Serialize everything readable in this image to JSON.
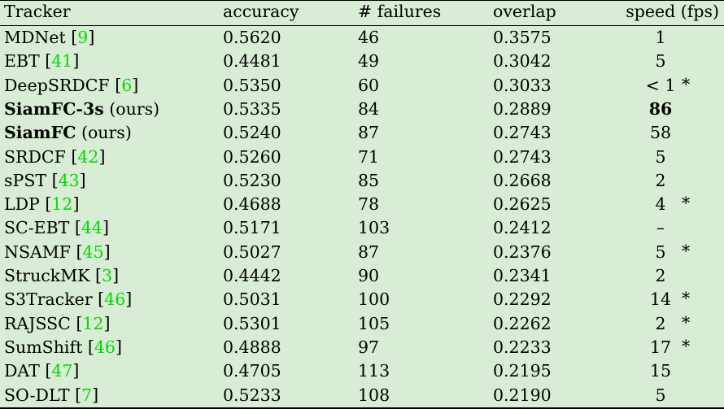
{
  "table": {
    "headers": [
      "Tracker",
      "accuracy",
      "# failures",
      "overlap",
      "speed (fps)"
    ],
    "rows": [
      {
        "name": "MDNet",
        "ref": "9",
        "accuracy": "0.5620",
        "failures": "46",
        "overlap": "0.3575",
        "speed": "1",
        "star": ""
      },
      {
        "name": "EBT",
        "ref": "41",
        "accuracy": "0.4481",
        "failures": "49",
        "overlap": "0.3042",
        "speed": "5",
        "star": ""
      },
      {
        "name": "DeepSRDCF",
        "ref": "6",
        "accuracy": "0.5350",
        "failures": "60",
        "overlap": "0.3033",
        "speed": "< 1",
        "star": "*"
      },
      {
        "name": "SiamFC-3s",
        "suffix": "(ours)",
        "accuracy": "0.5335",
        "failures": "84",
        "overlap": "0.2889",
        "speed": "86",
        "star": ""
      },
      {
        "name": "SiamFC",
        "suffix": "(ours)",
        "accuracy": "0.5240",
        "failures": "87",
        "overlap": "0.2743",
        "speed": "58",
        "star": ""
      },
      {
        "name": "SRDCF",
        "ref": "42",
        "accuracy": "0.5260",
        "failures": "71",
        "overlap": "0.2743",
        "speed": "5",
        "star": ""
      },
      {
        "name": "sPST",
        "ref": "43",
        "accuracy": "0.5230",
        "failures": "85",
        "overlap": "0.2668",
        "speed": "2",
        "star": ""
      },
      {
        "name": "LDP",
        "ref": "12",
        "accuracy": "0.4688",
        "failures": "78",
        "overlap": "0.2625",
        "speed": "4",
        "star": "*"
      },
      {
        "name": "SC-EBT",
        "ref": "44",
        "accuracy": "0.5171",
        "failures": "103",
        "overlap": "0.2412",
        "speed": "–",
        "star": ""
      },
      {
        "name": "NSAMF",
        "ref": "45",
        "accuracy": "0.5027",
        "failures": "87",
        "overlap": "0.2376",
        "speed": "5",
        "star": "*"
      },
      {
        "name": "StruckMK",
        "ref": "3",
        "accuracy": "0.4442",
        "failures": "90",
        "overlap": "0.2341",
        "speed": "2",
        "star": ""
      },
      {
        "name": "S3Tracker",
        "ref": "46",
        "accuracy": "0.5031",
        "failures": "100",
        "overlap": "0.2292",
        "speed": "14",
        "star": "*"
      },
      {
        "name": "RAJSSC",
        "ref": "12",
        "accuracy": "0.5301",
        "failures": "105",
        "overlap": "0.2262",
        "speed": "2",
        "star": "*"
      },
      {
        "name": "SumShift",
        "ref": "46",
        "accuracy": "0.4888",
        "failures": "97",
        "overlap": "0.2233",
        "speed": "17",
        "star": "*"
      },
      {
        "name": "DAT",
        "ref": "47",
        "accuracy": "0.4705",
        "failures": "113",
        "overlap": "0.2195",
        "speed": "15",
        "star": ""
      },
      {
        "name": "SO-DLT",
        "ref": "7",
        "accuracy": "0.5233",
        "failures": "108",
        "overlap": "0.2190",
        "speed": "5",
        "star": ""
      }
    ]
  },
  "colors": {
    "background": "#d9ecd5",
    "reference_link": "#00dd00"
  }
}
